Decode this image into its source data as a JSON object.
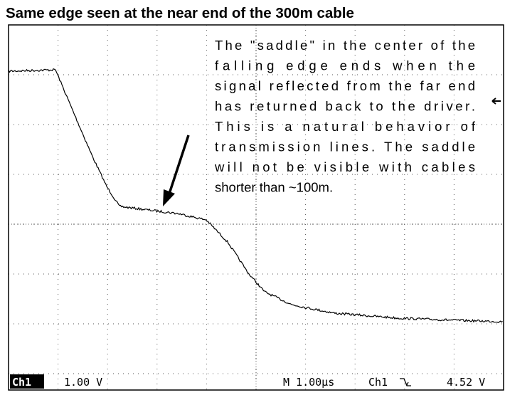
{
  "title": "Same edge seen at the near end of the 300m cable",
  "annotation": [
    "The \"saddle\" in the center of the",
    "falling edge ends when the",
    "signal reflected from the far end",
    "has returned back to the driver.",
    "This is a natural behavior of",
    "transmission lines. The saddle",
    "will not be visible with cables",
    "shorter than ~100m."
  ],
  "status": {
    "channel": "Ch1",
    "volts_per_div": "1.00 V",
    "timebase": "M 1.00µs",
    "trigger_source": "Ch1",
    "trigger_level": "4.52 V"
  }
}
